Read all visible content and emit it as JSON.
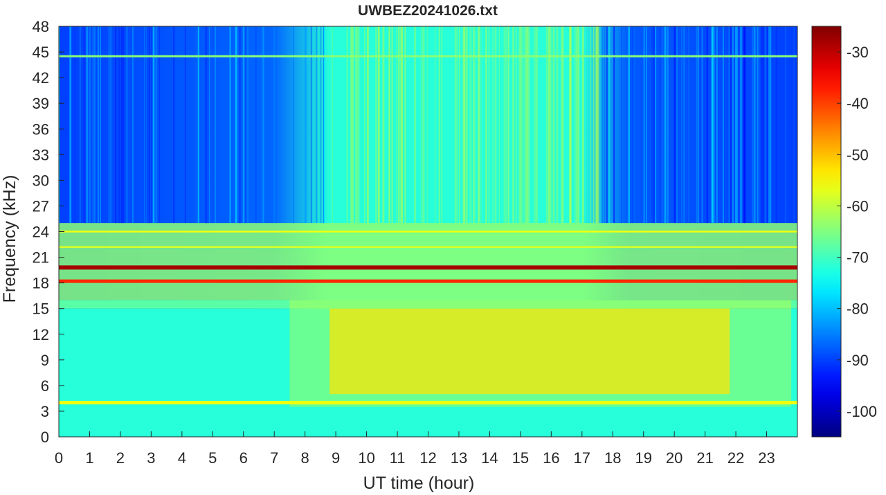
{
  "chart_data": {
    "type": "heatmap",
    "title": "UWBEZ20241026.txt",
    "xlabel": "UT time (hour)",
    "ylabel": "Frequency (kHz)",
    "xlim": [
      0,
      24
    ],
    "ylim": [
      0,
      48
    ],
    "x_ticks": [
      "0",
      "1",
      "2",
      "3",
      "4",
      "5",
      "6",
      "7",
      "8",
      "9",
      "10",
      "11",
      "12",
      "13",
      "14",
      "15",
      "16",
      "17",
      "18",
      "19",
      "20",
      "21",
      "22",
      "23"
    ],
    "y_ticks": [
      "0",
      "3",
      "6",
      "9",
      "12",
      "15",
      "18",
      "21",
      "24",
      "27",
      "30",
      "33",
      "36",
      "39",
      "42",
      "45",
      "48"
    ],
    "colorbar": {
      "colormap": "jet",
      "clim": [
        -105,
        -25
      ],
      "ticks": [
        "-30",
        "-40",
        "-50",
        "-60",
        "-70",
        "-80",
        "-90",
        "-100"
      ]
    },
    "grid": false,
    "narrowband_lines_khz": [
      19.8,
      18.2,
      24.0,
      22.2,
      44.5,
      4.0
    ],
    "approx_levels": {
      "background_high_freq_night": -90,
      "background_high_freq_day": -72,
      "daytime_band_6_to_15_khz": -52,
      "line_19_8_khz": -28,
      "line_18_2_khz": -38
    }
  }
}
